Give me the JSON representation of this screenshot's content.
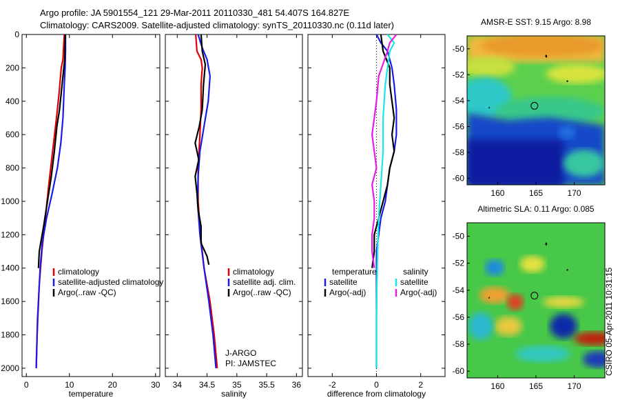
{
  "header": {
    "line1": "Argo profile: JA 5901554_121 29-Mar-2011 20110330_481 54.407S 164.827E",
    "line2": "Climatology: CARS2009. Satellite-adjusted climatology: synTS_20110330.nc (0.11d later)"
  },
  "side_label": "CSIRO 05-Apr-2011 10:31:15",
  "colors": {
    "red": "#e00000",
    "blue": "#1a1ae6",
    "black": "#000000",
    "cyan": "#19e6e6",
    "magenta": "#e619e6"
  },
  "chart_data": [
    {
      "type": "line",
      "xlabel": "temperature",
      "xlim": [
        -1,
        31
      ],
      "ylim": [
        2050,
        0
      ],
      "xticks": [
        0,
        10,
        20,
        30
      ],
      "yticks": [
        0,
        200,
        400,
        600,
        800,
        1000,
        1200,
        1400,
        1600,
        1800,
        2000
      ],
      "y_reversed": true,
      "legend": {
        "placement": "lower-right",
        "entries": [
          {
            "label": "climatology",
            "color": "#e00000"
          },
          {
            "label": "satellite-adjusted climatology",
            "color": "#1a1ae6"
          },
          {
            "label": "Argo(..raw -QC)",
            "color": "#000000"
          }
        ]
      },
      "series": [
        {
          "name": "climatology",
          "color": "#e00000",
          "points": [
            [
              8.8,
              0
            ],
            [
              8.6,
              100
            ],
            [
              8.5,
              150
            ],
            [
              8.1,
              200
            ],
            [
              7.6,
              350
            ],
            [
              7.0,
              500
            ],
            [
              6.1,
              700
            ],
            [
              5.2,
              900
            ],
            [
              4.4,
              1100
            ],
            [
              3.6,
              1300
            ],
            [
              3.0,
              1500
            ],
            [
              2.5,
              1800
            ],
            [
              2.3,
              2000
            ]
          ]
        },
        {
          "name": "satellite-adjusted climatology",
          "color": "#1a1ae6",
          "points": [
            [
              9.1,
              0
            ],
            [
              9.1,
              100
            ],
            [
              9.0,
              200
            ],
            [
              8.8,
              300
            ],
            [
              8.5,
              500
            ],
            [
              8.0,
              650
            ],
            [
              7.2,
              800
            ],
            [
              6.0,
              950
            ],
            [
              4.7,
              1100
            ],
            [
              3.7,
              1250
            ],
            [
              3.2,
              1400
            ],
            [
              2.6,
              1700
            ],
            [
              2.3,
              2000
            ]
          ]
        },
        {
          "name": "Argo(..raw -QC)",
          "color": "#000000",
          "points": [
            [
              9.0,
              0
            ],
            [
              8.9,
              150
            ],
            [
              8.5,
              250
            ],
            [
              8.1,
              350
            ],
            [
              7.7,
              450
            ],
            [
              7.1,
              550
            ],
            [
              6.5,
              700
            ],
            [
              5.8,
              850
            ],
            [
              4.9,
              1000
            ],
            [
              4.0,
              1150
            ],
            [
              3.0,
              1300
            ],
            [
              2.8,
              1400
            ]
          ]
        }
      ]
    },
    {
      "type": "line",
      "xlabel": "salinity",
      "xlim": [
        33.8,
        36.1
      ],
      "ylim": [
        2050,
        0
      ],
      "xticks": [
        34,
        34.5,
        35,
        35.5,
        36
      ],
      "xtick_labels": [
        "34",
        "34.5",
        "35",
        "35.5",
        "36"
      ],
      "y_reversed": true,
      "legend": {
        "placement": "lower-right",
        "entries": [
          {
            "label": "climatology",
            "color": "#e00000"
          },
          {
            "label": "satellite adj. clim.",
            "color": "#1a1ae6"
          },
          {
            "label": "Argo(..raw -QC)",
            "color": "#000000"
          }
        ]
      },
      "annotations": [
        "J-ARGO",
        "PI: JAMSTEC"
      ],
      "series": [
        {
          "name": "climatology",
          "color": "#e00000",
          "points": [
            [
              34.31,
              0
            ],
            [
              34.33,
              100
            ],
            [
              34.4,
              150
            ],
            [
              34.42,
              200
            ],
            [
              34.4,
              300
            ],
            [
              34.4,
              450
            ],
            [
              34.38,
              600
            ],
            [
              34.35,
              800
            ],
            [
              34.35,
              1000
            ],
            [
              34.39,
              1200
            ],
            [
              34.45,
              1400
            ],
            [
              34.55,
              1600
            ],
            [
              34.62,
              1800
            ],
            [
              34.67,
              2000
            ]
          ]
        },
        {
          "name": "satellite adj. clim.",
          "color": "#1a1ae6",
          "points": [
            [
              34.35,
              0
            ],
            [
              34.42,
              80
            ],
            [
              34.5,
              150
            ],
            [
              34.55,
              250
            ],
            [
              34.52,
              400
            ],
            [
              34.45,
              550
            ],
            [
              34.38,
              700
            ],
            [
              34.35,
              850
            ],
            [
              34.34,
              1000
            ],
            [
              34.38,
              1200
            ],
            [
              34.45,
              1400
            ],
            [
              34.53,
              1600
            ],
            [
              34.6,
              1800
            ],
            [
              34.65,
              2000
            ]
          ]
        },
        {
          "name": "Argo(..raw -QC)",
          "color": "#000000",
          "points": [
            [
              34.4,
              0
            ],
            [
              34.42,
              100
            ],
            [
              34.47,
              180
            ],
            [
              34.44,
              300
            ],
            [
              34.42,
              450
            ],
            [
              34.37,
              550
            ],
            [
              34.3,
              650
            ],
            [
              34.36,
              750
            ],
            [
              34.3,
              850
            ],
            [
              34.33,
              950
            ],
            [
              34.35,
              1050
            ],
            [
              34.4,
              1150
            ],
            [
              34.4,
              1250
            ],
            [
              34.5,
              1330
            ],
            [
              34.53,
              1380
            ]
          ]
        }
      ]
    },
    {
      "type": "line",
      "xlabel": "difference from climatology",
      "xlim": [
        -3.1,
        3.1
      ],
      "ylim": [
        2050,
        0
      ],
      "xticks": [
        -2,
        0,
        2
      ],
      "y_reversed": true,
      "legend": {
        "placement": "lower-right",
        "columns": [
          {
            "title": "temperature",
            "entries": [
              {
                "label": "satellite",
                "color": "#1a1ae6"
              },
              {
                "label": "Argo(-adj)",
                "color": "#000000"
              }
            ]
          },
          {
            "title": "salinity",
            "entries": [
              {
                "label": "satellite",
                "color": "#19e6e6"
              },
              {
                "label": "Argo(-adj)",
                "color": "#e619e6"
              }
            ]
          }
        ]
      },
      "series": [
        {
          "name": "temperature satellite",
          "color": "#1a1ae6",
          "points": [
            [
              0,
              0
            ],
            [
              0.2,
              50
            ],
            [
              0.5,
              100
            ],
            [
              0.7,
              200
            ],
            [
              0.8,
              300
            ],
            [
              0.9,
              450
            ],
            [
              0.9,
              600
            ],
            [
              0.8,
              700
            ],
            [
              0.6,
              800
            ],
            [
              0.5,
              900
            ],
            [
              0.4,
              1000
            ],
            [
              0.2,
              1100
            ],
            [
              0.1,
              1200
            ],
            [
              0,
              1300
            ],
            [
              0,
              1500
            ],
            [
              0,
              2000
            ]
          ]
        },
        {
          "name": "temperature Argo(-adj)",
          "color": "#000000",
          "points": [
            [
              0.2,
              0
            ],
            [
              0.3,
              100
            ],
            [
              0.6,
              200
            ],
            [
              0.6,
              300
            ],
            [
              0.7,
              400
            ],
            [
              0.8,
              500
            ],
            [
              0.7,
              600
            ],
            [
              0.8,
              700
            ],
            [
              0.6,
              800
            ],
            [
              0.5,
              900
            ],
            [
              0.3,
              1000
            ],
            [
              0.1,
              1100
            ],
            [
              -0.1,
              1200
            ],
            [
              -0.1,
              1300
            ],
            [
              -0.2,
              1400
            ]
          ]
        },
        {
          "name": "salinity satellite",
          "color": "#19e6e6",
          "points": [
            [
              0.5,
              0
            ],
            [
              0.8,
              50
            ],
            [
              0.6,
              100
            ],
            [
              0.5,
              200
            ],
            [
              0.4,
              300
            ],
            [
              0.3,
              500
            ],
            [
              0.3,
              700
            ],
            [
              0.2,
              900
            ],
            [
              0.1,
              1100
            ],
            [
              0.05,
              1300
            ],
            [
              0.02,
              1500
            ],
            [
              0,
              1700
            ],
            [
              0,
              2000
            ]
          ]
        },
        {
          "name": "salinity Argo(-adj)",
          "color": "#e619e6",
          "points": [
            [
              0.9,
              0
            ],
            [
              0.6,
              50
            ],
            [
              0.5,
              100
            ],
            [
              0.1,
              250
            ],
            [
              0,
              400
            ],
            [
              -0.1,
              500
            ],
            [
              -0.2,
              600
            ],
            [
              -0.1,
              700
            ],
            [
              0,
              800
            ],
            [
              -0.2,
              900
            ],
            [
              -0.1,
              1000
            ],
            [
              -0.1,
              1100
            ],
            [
              -0.2,
              1200
            ],
            [
              -0.2,
              1300
            ],
            [
              -0.1,
              1400
            ]
          ]
        }
      ]
    },
    {
      "type": "heatmap",
      "title": "AMSR-E SST: 9.15 Argo: 8.98",
      "xlim": [
        156,
        174
      ],
      "ylim": [
        -60.5,
        -49
      ],
      "xticks": [
        160,
        165,
        170
      ],
      "yticks": [
        -50,
        -52,
        -54,
        -56,
        -58,
        -60
      ],
      "float_position": [
        164.8,
        -54.4
      ]
    },
    {
      "type": "heatmap",
      "title": "Altimetric SLA: 0.11 Argo: 0.085",
      "xlim": [
        156,
        174
      ],
      "ylim": [
        -60.5,
        -49
      ],
      "xticks": [
        160,
        165,
        170
      ],
      "yticks": [
        -50,
        -52,
        -54,
        -56,
        -58,
        -60
      ],
      "float_position": [
        164.8,
        -54.4
      ]
    }
  ]
}
